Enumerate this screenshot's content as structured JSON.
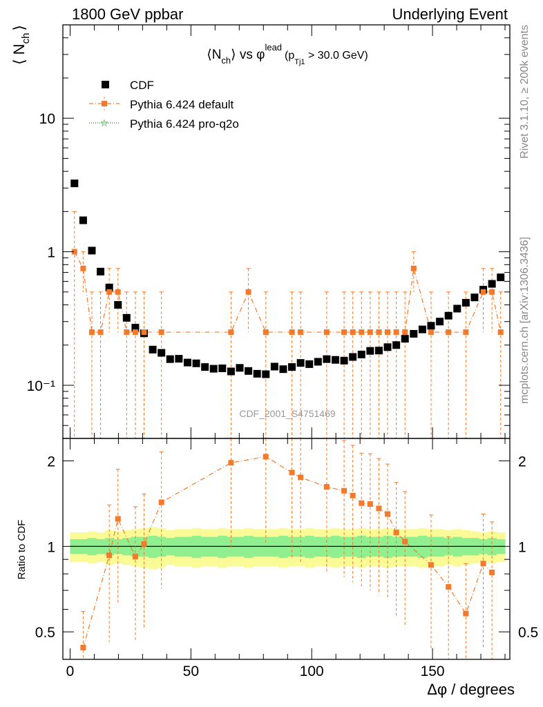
{
  "header": {
    "left": "1800 GeV ppbar",
    "right": "Underlying Event"
  },
  "side_labels": {
    "right_top": "Rivet 3.1.10, ≥ 200k events",
    "right_bottom": "mcplots.cern.ch [arXiv:1306.3436]"
  },
  "watermark": "CDF_2001_S4751469",
  "chart_data": [
    {
      "type": "scatter",
      "title": "<N_ch> vs φ^lead (p_Tj1 > 30.0 GeV)",
      "title_parts": {
        "main": "⟨N",
        "main_sub": "ch",
        "main_rest": "⟩ vs φ",
        "sup": "lead",
        "paren_open": "(p",
        "paren_sub": "Tj1",
        "paren_rest": " > 30.0 GeV)"
      },
      "ylabel": "⟨ N_ch ⟩",
      "ylabel_parts": {
        "open": "⟨ N",
        "sub": "ch",
        "close": "⟩"
      },
      "yscale": "log",
      "ylim": [
        0.04,
        50
      ],
      "xlim": [
        -3,
        182
      ],
      "y_ticks": [
        0.1,
        1,
        10
      ],
      "y_tick_labels": [
        "10⁻¹",
        "1",
        "10"
      ],
      "legend": {
        "placement": "top-left",
        "entries": [
          {
            "label": "CDF",
            "color": "#000000",
            "marker": "square"
          },
          {
            "label": "Pythia 6.424 default",
            "color": "#f5792a",
            "marker": "square-dashdot"
          },
          {
            "label": "Pythia 6.424 pro-q2o",
            "color": "#008000",
            "marker": "star-dotted"
          }
        ]
      },
      "series": [
        {
          "name": "CDF",
          "color": "#000000",
          "x": [
            1.8,
            5.4,
            9.0,
            12.6,
            16.2,
            19.8,
            23.4,
            27.0,
            30.6,
            34.2,
            37.8,
            41.4,
            45.0,
            48.6,
            52.2,
            55.8,
            59.4,
            63.0,
            66.6,
            70.2,
            73.8,
            77.4,
            81.0,
            84.6,
            88.2,
            91.8,
            95.4,
            99.0,
            102.6,
            106.2,
            109.8,
            113.4,
            117.0,
            120.6,
            124.2,
            127.8,
            131.4,
            135.0,
            138.6,
            142.2,
            145.8,
            149.4,
            153.0,
            156.6,
            160.2,
            163.8,
            167.4,
            171.0,
            174.6,
            178.2
          ],
          "y": [
            3.25,
            1.72,
            1.02,
            0.71,
            0.54,
            0.4,
            0.32,
            0.27,
            0.245,
            0.185,
            0.175,
            0.157,
            0.158,
            0.148,
            0.146,
            0.137,
            0.133,
            0.134,
            0.127,
            0.135,
            0.128,
            0.122,
            0.121,
            0.138,
            0.132,
            0.137,
            0.147,
            0.144,
            0.15,
            0.157,
            0.155,
            0.153,
            0.163,
            0.17,
            0.181,
            0.182,
            0.193,
            0.2,
            0.223,
            0.243,
            0.262,
            0.279,
            0.3,
            0.332,
            0.375,
            0.415,
            0.455,
            0.52,
            0.575,
            0.643
          ]
        },
        {
          "name": "Pythia 6.424 default",
          "color": "#f5792a",
          "x": [
            1.8,
            5.4,
            9.0,
            12.6,
            16.2,
            19.8,
            23.4,
            27.0,
            30.6,
            37.8,
            66.6,
            73.8,
            81.0,
            91.8,
            95.4,
            106.2,
            113.4,
            117.0,
            120.6,
            124.2,
            127.8,
            131.4,
            135.0,
            138.6,
            142.2,
            149.4,
            156.6,
            163.8,
            171.0,
            174.6,
            178.2
          ],
          "y": [
            1.0,
            0.75,
            0.25,
            0.25,
            0.5,
            0.5,
            0.25,
            0.25,
            0.25,
            0.25,
            0.25,
            0.5,
            0.25,
            0.25,
            0.25,
            0.25,
            0.25,
            0.25,
            0.25,
            0.25,
            0.25,
            0.25,
            0.25,
            0.25,
            0.75,
            0.25,
            0.25,
            0.25,
            0.5,
            0.5,
            0.25
          ],
          "yerr_low": [
            1.0,
            0.25,
            0.25,
            0.25,
            0.25,
            0.25,
            0.25,
            0.25,
            0.25,
            0.25,
            0.25,
            0.25,
            0.25,
            0.25,
            0.25,
            0.25,
            0.25,
            0.25,
            0.25,
            0.25,
            0.25,
            0.25,
            0.25,
            0.25,
            0.25,
            0.25,
            0.25,
            0.25,
            0.25,
            0.25,
            0.25
          ],
          "yerr_high": [
            1.0,
            0.25,
            0.25,
            0.25,
            0.25,
            0.25,
            0.25,
            0.25,
            0.25,
            0.25,
            0.25,
            0.25,
            0.25,
            0.25,
            0.25,
            0.25,
            0.25,
            0.25,
            0.25,
            0.25,
            0.25,
            0.25,
            0.25,
            0.25,
            0.25,
            0.25,
            0.25,
            0.25,
            0.25,
            0.25,
            0.25
          ]
        },
        {
          "name": "Pythia 6.424 pro-q2o",
          "color": "#008000",
          "x": [],
          "y": []
        }
      ]
    },
    {
      "type": "scatter",
      "ylabel": "Ratio to CDF",
      "xlabel": "Δφ / degrees",
      "yscale": "log",
      "ylim": [
        0.4,
        2.4
      ],
      "xlim": [
        -3,
        182
      ],
      "x_ticks": [
        0,
        50,
        100,
        150
      ],
      "x_tick_labels": [
        "0",
        "50",
        "100",
        "150"
      ],
      "y_ticks": [
        0.5,
        1,
        2
      ],
      "y_tick_labels": [
        "0.5",
        "1",
        "2"
      ],
      "reference_line": 1,
      "bands": {
        "inner_color": "#90f090",
        "outer_color": "#fafa96",
        "x": [
          1.8,
          5.4,
          9.0,
          12.6,
          16.2,
          19.8,
          23.4,
          27.0,
          30.6,
          34.2,
          37.8,
          41.4,
          45.0,
          48.6,
          52.2,
          55.8,
          59.4,
          63.0,
          66.6,
          70.2,
          73.8,
          77.4,
          81.0,
          84.6,
          88.2,
          91.8,
          95.4,
          99.0,
          102.6,
          106.2,
          109.8,
          113.4,
          117.0,
          120.6,
          124.2,
          127.8,
          131.4,
          135.0,
          138.6,
          142.2,
          145.8,
          149.4,
          153.0,
          156.6,
          160.2,
          163.8,
          167.4,
          171.0,
          174.6,
          178.2
        ],
        "inner": [
          0.06,
          0.06,
          0.07,
          0.06,
          0.07,
          0.06,
          0.07,
          0.08,
          0.08,
          0.09,
          0.08,
          0.07,
          0.08,
          0.08,
          0.09,
          0.08,
          0.08,
          0.09,
          0.08,
          0.08,
          0.09,
          0.08,
          0.08,
          0.08,
          0.09,
          0.08,
          0.08,
          0.09,
          0.08,
          0.08,
          0.09,
          0.08,
          0.08,
          0.09,
          0.08,
          0.08,
          0.09,
          0.08,
          0.08,
          0.08,
          0.09,
          0.08,
          0.08,
          0.07,
          0.08,
          0.07,
          0.07,
          0.06,
          0.07,
          0.06
        ],
        "outer": [
          0.12,
          0.12,
          0.13,
          0.12,
          0.14,
          0.13,
          0.14,
          0.15,
          0.16,
          0.17,
          0.16,
          0.14,
          0.15,
          0.15,
          0.16,
          0.15,
          0.15,
          0.16,
          0.15,
          0.15,
          0.16,
          0.15,
          0.15,
          0.15,
          0.16,
          0.15,
          0.15,
          0.16,
          0.15,
          0.15,
          0.16,
          0.15,
          0.15,
          0.16,
          0.15,
          0.15,
          0.16,
          0.15,
          0.15,
          0.15,
          0.16,
          0.15,
          0.15,
          0.14,
          0.15,
          0.14,
          0.13,
          0.12,
          0.13,
          0.12
        ]
      },
      "series": [
        {
          "name": "Pythia 6.424 default",
          "color": "#f5792a",
          "x": [
            5.4,
            16.2,
            19.8,
            27.0,
            30.6,
            37.8,
            66.6,
            81.0,
            91.8,
            95.4,
            106.2,
            113.4,
            117.0,
            120.6,
            124.2,
            127.8,
            131.4,
            135.0,
            138.6,
            149.4,
            156.6,
            163.8,
            171.0,
            174.6
          ],
          "y": [
            0.44,
            0.93,
            1.25,
            0.92,
            1.02,
            1.43,
            1.97,
            2.07,
            1.82,
            1.75,
            1.62,
            1.57,
            1.51,
            1.42,
            1.41,
            1.36,
            1.3,
            1.12,
            1.04,
            0.86,
            0.72,
            0.58,
            0.87,
            0.81
          ],
          "yerr_low": [
            0.15,
            0.47,
            0.62,
            0.46,
            0.51,
            0.72,
            0.98,
            1.04,
            0.91,
            0.88,
            0.81,
            0.79,
            0.76,
            0.71,
            0.71,
            0.68,
            0.65,
            0.56,
            0.52,
            0.43,
            0.36,
            0.29,
            0.43,
            0.41
          ],
          "yerr_high": [
            0.15,
            0.47,
            0.62,
            0.46,
            0.51,
            0.72,
            0.98,
            1.04,
            0.91,
            0.88,
            0.81,
            0.79,
            0.76,
            0.71,
            0.71,
            0.68,
            0.65,
            0.56,
            0.52,
            0.43,
            0.36,
            0.29,
            0.43,
            0.41
          ]
        }
      ]
    }
  ]
}
